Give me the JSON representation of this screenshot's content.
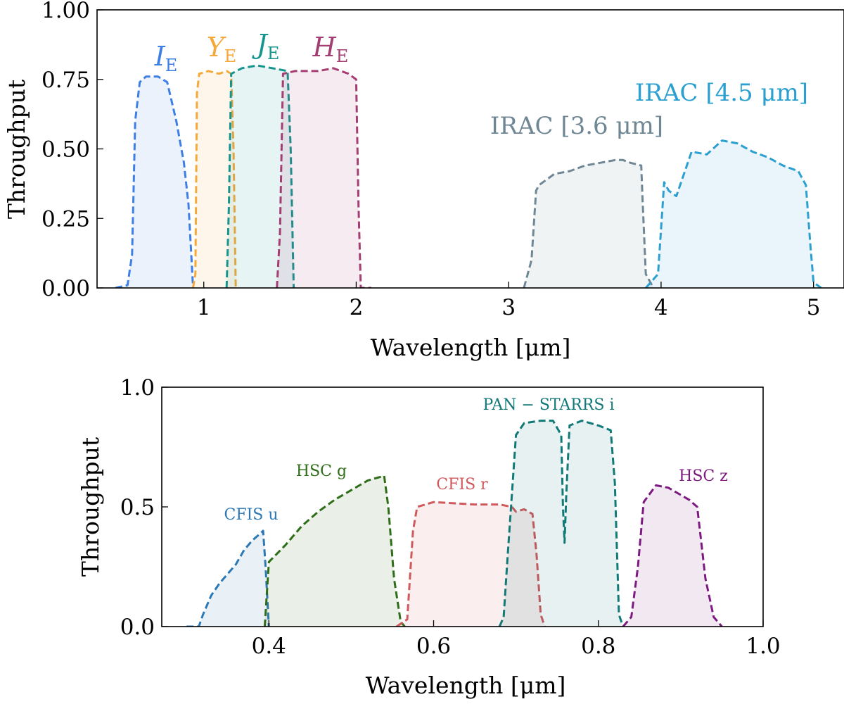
{
  "chart_data": [
    {
      "type": "area",
      "xlabel": "Wavelength [μm]",
      "ylabel": "Throughput",
      "xlim": [
        0.3,
        5.2
      ],
      "ylim": [
        0.0,
        1.0
      ],
      "x_ticks": [
        1,
        2,
        3,
        4,
        5
      ],
      "x_tick_labels": [
        "1",
        "2",
        "3",
        "4",
        "5"
      ],
      "y_ticks": [
        0.0,
        0.25,
        0.5,
        0.75,
        1.0
      ],
      "y_tick_labels": [
        "0.00",
        "0.25",
        "0.50",
        "0.75",
        "1.00"
      ],
      "grid": false,
      "line_style": "dashed",
      "series": [
        {
          "name": "I_E",
          "label_main": "I",
          "label_sub": "E",
          "label_italic": true,
          "color": "#3d7fe6",
          "points": [
            [
              0.42,
              0.0
            ],
            [
              0.5,
              0.01
            ],
            [
              0.53,
              0.12
            ],
            [
              0.55,
              0.6
            ],
            [
              0.58,
              0.74
            ],
            [
              0.62,
              0.76
            ],
            [
              0.7,
              0.76
            ],
            [
              0.76,
              0.74
            ],
            [
              0.82,
              0.6
            ],
            [
              0.87,
              0.45
            ],
            [
              0.9,
              0.3
            ],
            [
              0.92,
              0.1
            ],
            [
              0.93,
              0.0
            ]
          ]
        },
        {
          "name": "Y_E",
          "label_main": "Y",
          "label_sub": "E",
          "label_italic": true,
          "color": "#f5a93a",
          "points": [
            [
              0.93,
              0.0
            ],
            [
              0.945,
              0.05
            ],
            [
              0.955,
              0.7
            ],
            [
              0.97,
              0.77
            ],
            [
              1.03,
              0.78
            ],
            [
              1.1,
              0.77
            ],
            [
              1.15,
              0.78
            ],
            [
              1.18,
              0.77
            ],
            [
              1.195,
              0.5
            ],
            [
              1.21,
              0.0
            ]
          ]
        },
        {
          "name": "J_E",
          "label_main": "J",
          "label_sub": "E",
          "label_italic": true,
          "color": "#16958f",
          "points": [
            [
              1.15,
              0.0
            ],
            [
              1.165,
              0.3
            ],
            [
              1.18,
              0.77
            ],
            [
              1.25,
              0.79
            ],
            [
              1.35,
              0.8
            ],
            [
              1.45,
              0.79
            ],
            [
              1.55,
              0.78
            ],
            [
              1.57,
              0.5
            ],
            [
              1.59,
              0.0
            ]
          ]
        },
        {
          "name": "H_E",
          "label_main": "H",
          "label_sub": "E",
          "label_italic": true,
          "color": "#a43d72",
          "points": [
            [
              1.48,
              0.0
            ],
            [
              1.5,
              0.2
            ],
            [
              1.52,
              0.77
            ],
            [
              1.6,
              0.78
            ],
            [
              1.75,
              0.78
            ],
            [
              1.85,
              0.79
            ],
            [
              1.95,
              0.77
            ],
            [
              2.0,
              0.75
            ],
            [
              2.015,
              0.3
            ],
            [
              2.03,
              0.0
            ],
            [
              2.1,
              0.0
            ]
          ]
        },
        {
          "name": "IRAC [3.6 μm]",
          "label_main": "IRAC [3.6 μm]",
          "label_sub": "",
          "label_italic": false,
          "color": "#6f8795",
          "points": [
            [
              3.1,
              0.0
            ],
            [
              3.15,
              0.1
            ],
            [
              3.18,
              0.35
            ],
            [
              3.2,
              0.37
            ],
            [
              3.25,
              0.39
            ],
            [
              3.3,
              0.41
            ],
            [
              3.4,
              0.42
            ],
            [
              3.5,
              0.44
            ],
            [
              3.6,
              0.45
            ],
            [
              3.7,
              0.46
            ],
            [
              3.75,
              0.46
            ],
            [
              3.8,
              0.45
            ],
            [
              3.87,
              0.44
            ],
            [
              3.88,
              0.3
            ],
            [
              3.9,
              0.05
            ],
            [
              3.95,
              0.0
            ]
          ]
        },
        {
          "name": "IRAC [4.5 μm]",
          "label_main": "IRAC [4.5 μm]",
          "label_sub": "",
          "label_italic": false,
          "color": "#2a9fd0",
          "points": [
            [
              3.9,
              0.0
            ],
            [
              3.98,
              0.05
            ],
            [
              4.02,
              0.38
            ],
            [
              4.05,
              0.35
            ],
            [
              4.1,
              0.33
            ],
            [
              4.2,
              0.49
            ],
            [
              4.3,
              0.48
            ],
            [
              4.4,
              0.53
            ],
            [
              4.5,
              0.52
            ],
            [
              4.6,
              0.49
            ],
            [
              4.7,
              0.47
            ],
            [
              4.8,
              0.44
            ],
            [
              4.9,
              0.42
            ],
            [
              4.95,
              0.37
            ],
            [
              4.98,
              0.15
            ],
            [
              5.0,
              0.02
            ],
            [
              5.05,
              0.0
            ]
          ]
        }
      ]
    },
    {
      "type": "area",
      "xlabel": "Wavelength [μm]",
      "ylabel": "Throughput",
      "xlim": [
        0.27,
        1.0
      ],
      "ylim": [
        0.0,
        1.0
      ],
      "x_ticks": [
        0.4,
        0.6,
        0.8,
        1.0
      ],
      "x_tick_labels": [
        "0.4",
        "0.6",
        "0.8",
        "1.0"
      ],
      "y_ticks": [
        0.0,
        0.5,
        1.0
      ],
      "y_tick_labels": [
        "0.0",
        "0.5",
        "1.0"
      ],
      "grid": false,
      "line_style": "dashed",
      "series": [
        {
          "name": "CFIS u",
          "color": "#2b78b5",
          "points": [
            [
              0.3,
              0.0
            ],
            [
              0.315,
              0.0
            ],
            [
              0.32,
              0.05
            ],
            [
              0.33,
              0.13
            ],
            [
              0.34,
              0.18
            ],
            [
              0.35,
              0.22
            ],
            [
              0.36,
              0.26
            ],
            [
              0.37,
              0.32
            ],
            [
              0.38,
              0.36
            ],
            [
              0.39,
              0.39
            ],
            [
              0.393,
              0.4
            ],
            [
              0.396,
              0.25
            ],
            [
              0.4,
              0.0
            ]
          ]
        },
        {
          "name": "HSC g",
          "color": "#2f6e18",
          "points": [
            [
              0.395,
              0.0
            ],
            [
              0.4,
              0.27
            ],
            [
              0.42,
              0.34
            ],
            [
              0.44,
              0.42
            ],
            [
              0.46,
              0.48
            ],
            [
              0.48,
              0.53
            ],
            [
              0.5,
              0.57
            ],
            [
              0.52,
              0.61
            ],
            [
              0.54,
              0.63
            ],
            [
              0.545,
              0.5
            ],
            [
              0.552,
              0.2
            ],
            [
              0.56,
              0.02
            ],
            [
              0.565,
              0.0
            ]
          ]
        },
        {
          "name": "CFIS r",
          "color": "#d0595d",
          "points": [
            [
              0.555,
              0.0
            ],
            [
              0.568,
              0.03
            ],
            [
              0.575,
              0.4
            ],
            [
              0.58,
              0.5
            ],
            [
              0.6,
              0.52
            ],
            [
              0.65,
              0.51
            ],
            [
              0.68,
              0.51
            ],
            [
              0.695,
              0.5
            ],
            [
              0.7,
              0.48
            ],
            [
              0.71,
              0.49
            ],
            [
              0.72,
              0.47
            ],
            [
              0.725,
              0.3
            ],
            [
              0.73,
              0.05
            ],
            [
              0.735,
              0.0
            ]
          ]
        },
        {
          "name": "PAN − STARRS i",
          "color": "#117a78",
          "points": [
            [
              0.68,
              0.0
            ],
            [
              0.685,
              0.04
            ],
            [
              0.69,
              0.3
            ],
            [
              0.7,
              0.8
            ],
            [
              0.71,
              0.85
            ],
            [
              0.73,
              0.86
            ],
            [
              0.745,
              0.86
            ],
            [
              0.755,
              0.8
            ],
            [
              0.757,
              0.5
            ],
            [
              0.759,
              0.35
            ],
            [
              0.761,
              0.55
            ],
            [
              0.765,
              0.84
            ],
            [
              0.78,
              0.86
            ],
            [
              0.8,
              0.84
            ],
            [
              0.815,
              0.82
            ],
            [
              0.82,
              0.6
            ],
            [
              0.825,
              0.05
            ],
            [
              0.83,
              0.0
            ]
          ]
        },
        {
          "name": "HSC z",
          "color": "#7c1a80",
          "points": [
            [
              0.83,
              0.0
            ],
            [
              0.84,
              0.04
            ],
            [
              0.848,
              0.25
            ],
            [
              0.855,
              0.52
            ],
            [
              0.87,
              0.59
            ],
            [
              0.885,
              0.58
            ],
            [
              0.9,
              0.55
            ],
            [
              0.91,
              0.53
            ],
            [
              0.92,
              0.5
            ],
            [
              0.93,
              0.2
            ],
            [
              0.94,
              0.04
            ],
            [
              0.95,
              0.0
            ]
          ]
        }
      ]
    }
  ]
}
